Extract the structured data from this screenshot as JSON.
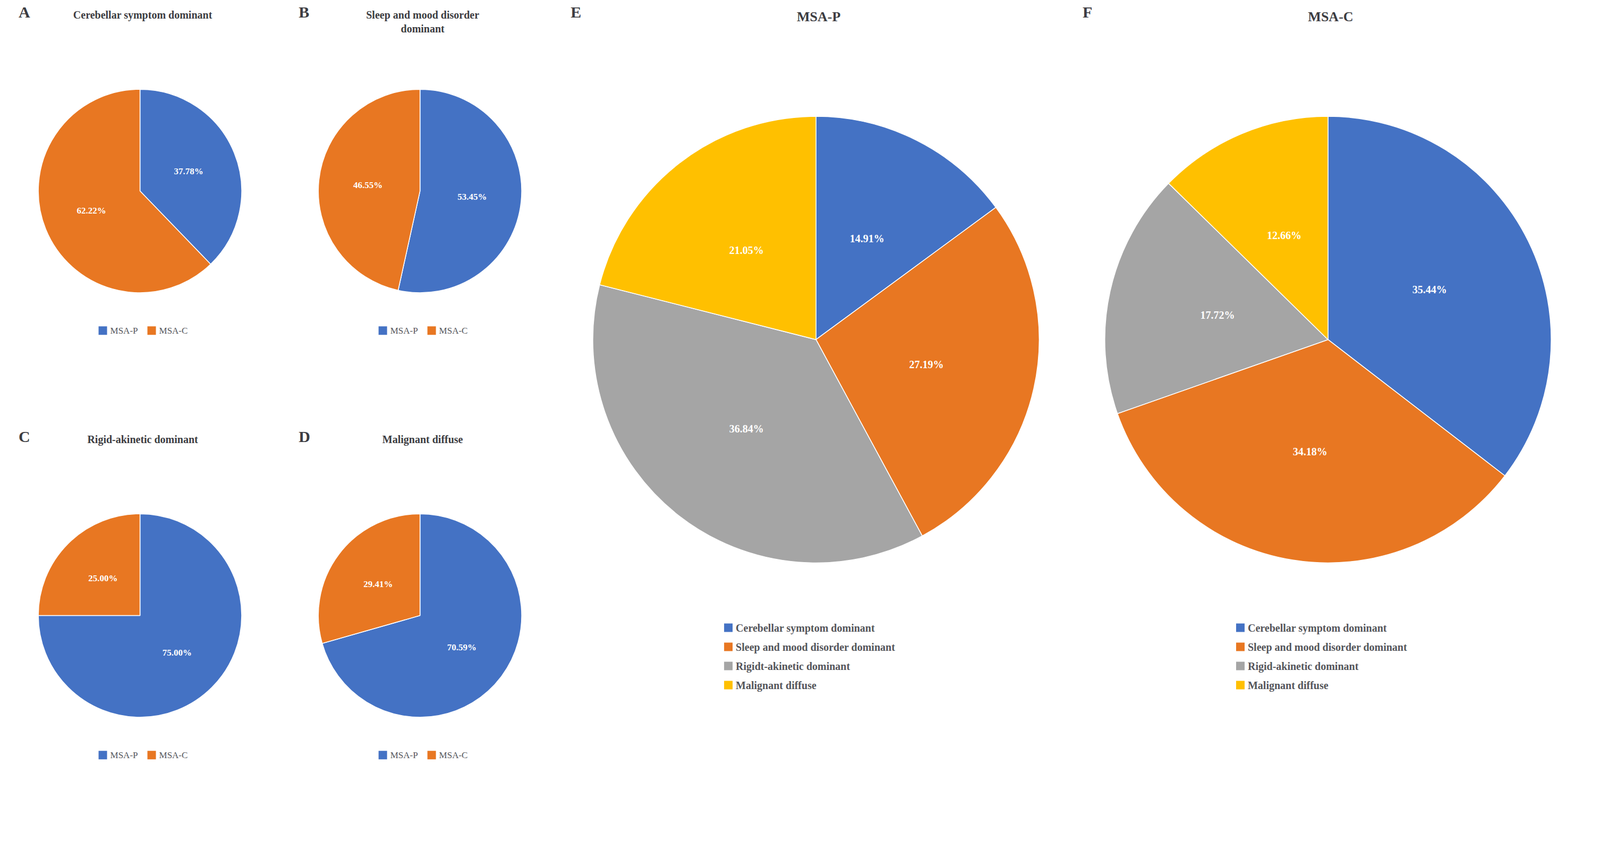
{
  "chart_data": [
    {
      "type": "pie",
      "title": "Cerebellar symptom dominant",
      "annotations": [
        "A"
      ],
      "categories": [
        "MSA-P",
        "MSA-C"
      ],
      "values": [
        37.78,
        62.22
      ],
      "value_labels": [
        "37.78%",
        "62.22%"
      ],
      "colors": [
        "#4472C4",
        "#E87722"
      ],
      "data_labels": true,
      "legend": "bottom"
    },
    {
      "type": "pie",
      "title": "Sleep and mood disorder\ndominant",
      "annotations": [
        "B"
      ],
      "categories": [
        "MSA-P",
        "MSA-C"
      ],
      "values": [
        53.45,
        46.55
      ],
      "value_labels": [
        "53.45%",
        "46.55%"
      ],
      "colors": [
        "#4472C4",
        "#E87722"
      ],
      "data_labels": true,
      "legend": "bottom"
    },
    {
      "type": "pie",
      "title": "Rigid-akinetic dominant",
      "annotations": [
        "C"
      ],
      "categories": [
        "MSA-P",
        "MSA-C"
      ],
      "values": [
        75.0,
        25.0
      ],
      "value_labels": [
        "75.00%",
        "25.00%"
      ],
      "colors": [
        "#4472C4",
        "#E87722"
      ],
      "data_labels": true,
      "legend": "bottom"
    },
    {
      "type": "pie",
      "title": "Malignant diffuse",
      "annotations": [
        "D"
      ],
      "categories": [
        "MSA-P",
        "MSA-C"
      ],
      "values": [
        70.59,
        29.41
      ],
      "value_labels": [
        "70.59%",
        "29.41%"
      ],
      "colors": [
        "#4472C4",
        "#E87722"
      ],
      "data_labels": true,
      "legend": "bottom"
    },
    {
      "type": "pie",
      "title": "MSA-P",
      "annotations": [
        "E"
      ],
      "categories": [
        "Cerebellar symptom dominant",
        "Sleep and mood disorder dominant",
        "Rigidt-akinetic dominant",
        "Malignant diffuse"
      ],
      "values": [
        14.91,
        27.19,
        36.84,
        21.05
      ],
      "value_labels": [
        "14.91%",
        "27.19%",
        "36.84%",
        "21.05%"
      ],
      "colors": [
        "#4472C4",
        "#E87722",
        "#A5A5A5",
        "#FFC000"
      ],
      "data_labels": true,
      "legend": "bottom"
    },
    {
      "type": "pie",
      "title": "MSA-C",
      "annotations": [
        "F"
      ],
      "categories": [
        "Cerebellar symptom dominant",
        "Sleep and mood disorder dominant",
        "Rigid-akinetic dominant",
        "Malignant diffuse"
      ],
      "values": [
        35.44,
        34.18,
        17.72,
        12.66
      ],
      "value_labels": [
        "35.44%",
        "34.18%",
        "17.72%",
        "12.66%"
      ],
      "colors": [
        "#4472C4",
        "#E87722",
        "#A5A5A5",
        "#FFC000"
      ],
      "data_labels": true,
      "legend": "bottom"
    }
  ]
}
